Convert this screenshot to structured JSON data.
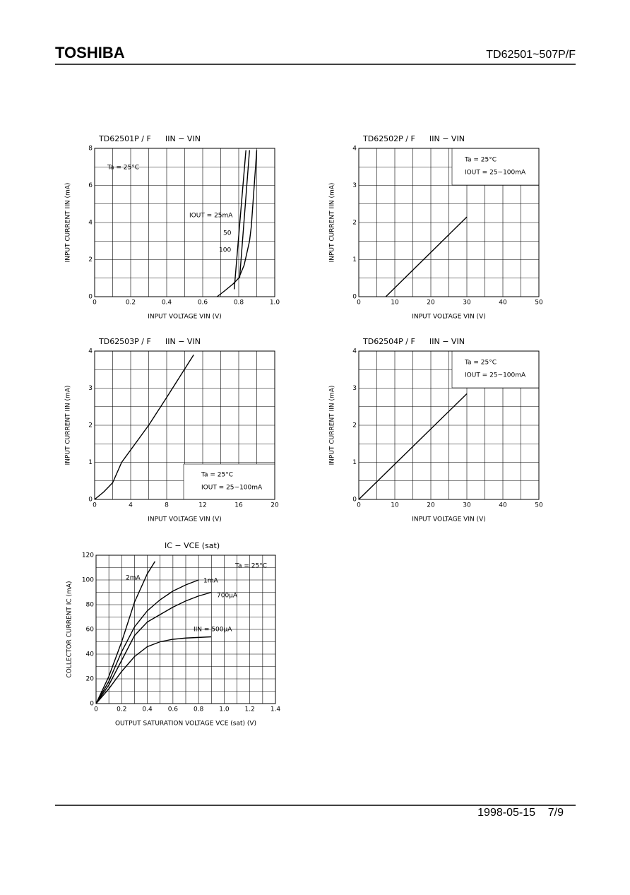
{
  "header": {
    "brand": "TOSHIBA",
    "part": "TD62501~507P/F"
  },
  "footer": {
    "date": "1998-05-15",
    "page": "7/9"
  },
  "chart_data": [
    {
      "type": "line",
      "subtitle": "TD62501P / F",
      "title": "IIN − VIN",
      "x_label": "INPUT VOLTAGE VIN (V)",
      "y_label": "INPUT CURRENT IIN (mA)",
      "xlim": [
        0,
        1
      ],
      "xticks": [
        0,
        0.2,
        0.4,
        0.6,
        0.8,
        {
          "value": 1,
          "label": "1.0"
        }
      ],
      "ylim": [
        0,
        8
      ],
      "yticks": [
        0,
        2,
        4,
        6,
        8
      ],
      "grid": true,
      "annotations": [
        "Ta = 25°C"
      ],
      "series": [
        {
          "name": "IOUT = 25mA",
          "color": "#000000",
          "x": [
            0.775,
            0.84
          ],
          "values": [
            0.4,
            7.9
          ]
        },
        {
          "name": "50",
          "color": "#000000",
          "x": [
            0.805,
            0.86
          ],
          "values": [
            1.0,
            7.9
          ]
        },
        {
          "name": "100",
          "color": "#000000",
          "x": [
            0.68,
            0.72,
            0.77,
            0.8,
            0.83,
            0.86,
            0.87,
            0.9
          ],
          "values": [
            0,
            0.3,
            0.7,
            1.0,
            1.7,
            3.0,
            3.8,
            7.9
          ]
        }
      ]
    },
    {
      "type": "line",
      "subtitle": "TD62502P / F",
      "title": "IIN − VIN",
      "x_label": "INPUT VOLTAGE VIN (V)",
      "y_label": "INPUT CURRENT IIN (mA)",
      "xlim": [
        0,
        50
      ],
      "xticks": [
        0,
        10,
        20,
        30,
        40,
        50
      ],
      "ylim": [
        0,
        4
      ],
      "yticks": [
        0,
        1,
        2,
        3,
        4
      ],
      "grid": true,
      "annotations": [
        "Ta = 25°C",
        "IOUT = 25~100mA"
      ],
      "series": [
        {
          "color": "#000000",
          "x": [
            7.5,
            30
          ],
          "values": [
            0,
            2.15
          ]
        }
      ]
    },
    {
      "type": "line",
      "subtitle": "TD62503P / F",
      "title": "IIN − VIN",
      "x_label": "INPUT VOLTAGE VIN (V)",
      "y_label": "INPUT CURRENT IIN (mA)",
      "xlim": [
        0,
        20
      ],
      "xticks": [
        0,
        4,
        8,
        12,
        16,
        20
      ],
      "ylim": [
        0,
        4
      ],
      "yticks": [
        0,
        1,
        2,
        3,
        4
      ],
      "grid": true,
      "annotations": [
        "Ta = 25°C",
        "IOUT = 25~100mA"
      ],
      "series": [
        {
          "color": "#000000",
          "x": [
            0,
            1,
            2,
            3,
            6,
            8,
            11
          ],
          "values": [
            0,
            0.2,
            0.45,
            1.0,
            2.0,
            2.75,
            3.9
          ]
        }
      ]
    },
    {
      "type": "line",
      "subtitle": "TD62504P / F",
      "title": "IIN − VIN",
      "x_label": "INPUT VOLTAGE VIN (V)",
      "y_label": "INPUT CURRENT IIN (mA)",
      "xlim": [
        0,
        50
      ],
      "xticks": [
        0,
        10,
        20,
        30,
        40,
        50
      ],
      "ylim": [
        0,
        4
      ],
      "yticks": [
        0,
        1,
        2,
        3,
        4
      ],
      "grid": true,
      "annotations": [
        "Ta = 25°C",
        "IOUT = 25~100mA"
      ],
      "series": [
        {
          "color": "#000000",
          "x": [
            0,
            30
          ],
          "values": [
            0,
            2.85
          ]
        }
      ]
    },
    {
      "type": "line",
      "title": "IC − VCE (sat)",
      "x_label": "OUTPUT SATURATION VOLTAGE VCE (sat) (V)",
      "y_label": "COLLECTOR CURRENT IC (mA)",
      "xlim": [
        0,
        1.4
      ],
      "xticks": [
        0,
        0.2,
        0.4,
        0.6,
        0.8,
        {
          "value": 1,
          "label": "1.0"
        },
        1.2,
        1.4
      ],
      "ylim": [
        0,
        120
      ],
      "yticks": [
        0,
        20,
        40,
        60,
        80,
        100,
        120
      ],
      "grid": true,
      "annotations": [
        "Ta = 25°C"
      ],
      "series": [
        {
          "name": "2mA",
          "color": "#000000",
          "x": [
            0,
            0.1,
            0.2,
            0.3,
            0.4,
            0.46
          ],
          "values": [
            0,
            22,
            50,
            82,
            105,
            115
          ]
        },
        {
          "name": "1mA",
          "color": "#000000",
          "x": [
            0,
            0.1,
            0.2,
            0.3,
            0.4,
            0.5,
            0.6,
            0.7,
            0.8
          ],
          "values": [
            0,
            18,
            42,
            62,
            75,
            84,
            91,
            96,
            100
          ]
        },
        {
          "name": "700µA",
          "color": "#000000",
          "x": [
            0,
            0.1,
            0.2,
            0.3,
            0.4,
            0.5,
            0.6,
            0.7,
            0.8,
            0.9
          ],
          "values": [
            0,
            15,
            35,
            55,
            66,
            72,
            78,
            83,
            87,
            90
          ]
        },
        {
          "name": "IIN = 500µA",
          "color": "#000000",
          "x": [
            0,
            0.1,
            0.2,
            0.3,
            0.4,
            0.5,
            0.6,
            0.7,
            0.8,
            0.9
          ],
          "values": [
            0,
            12,
            26,
            38,
            46,
            50,
            52,
            53,
            53.5,
            54
          ]
        }
      ]
    }
  ]
}
